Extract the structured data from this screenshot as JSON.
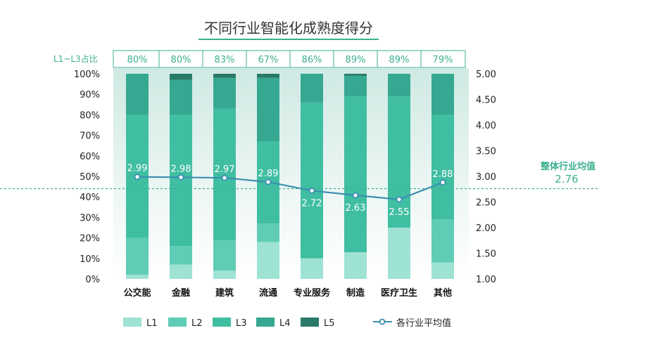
{
  "chart_data": {
    "type": "bar",
    "title": "不同行业智能化成熟度得分",
    "categories": [
      "公交能",
      "金融",
      "建筑",
      "流通",
      "专业服务",
      "制造",
      "医疗卫生",
      "其他"
    ],
    "series": [
      {
        "name": "L1",
        "values": [
          2,
          7,
          4,
          18,
          10,
          13,
          25,
          8
        ],
        "color": "#9ee2d3"
      },
      {
        "name": "L2",
        "values": [
          18,
          9,
          15,
          9,
          0,
          0,
          0,
          21
        ],
        "color": "#5fcdb6"
      },
      {
        "name": "L3",
        "values": [
          60,
          64,
          64,
          40,
          76,
          76,
          64,
          51
        ],
        "color": "#40bea2"
      },
      {
        "name": "L4",
        "values": [
          20,
          17,
          15,
          31,
          14,
          10,
          11,
          20
        ],
        "color": "#36a891"
      },
      {
        "name": "L5",
        "values": [
          0,
          3,
          2,
          2,
          0,
          1,
          0,
          0
        ],
        "color": "#2a7a69"
      }
    ],
    "line_series": {
      "name": "各行业平均值",
      "values": [
        2.99,
        2.98,
        2.97,
        2.89,
        2.72,
        2.63,
        2.55,
        2.88
      ],
      "color": "#3a8fb0"
    },
    "labels": [
      "2.99",
      "2.98",
      "2.97",
      "2.89",
      "2.72",
      "2.63",
      "2.55",
      "2.88"
    ],
    "l1_l3_header": "L1~L3占比",
    "l1_l3_values": [
      "80%",
      "80%",
      "83%",
      "67%",
      "86%",
      "89%",
      "89%",
      "79%"
    ],
    "left_axis": {
      "ylim": [
        0,
        100
      ],
      "ticks": [
        "0%",
        "10%",
        "20%",
        "30%",
        "40%",
        "50%",
        "60%",
        "70%",
        "80%",
        "90%",
        "100%"
      ]
    },
    "right_axis": {
      "ylim": [
        1.0,
        5.0
      ],
      "ticks": [
        "1.00",
        "1.50",
        "2.00",
        "2.50",
        "3.00",
        "3.50",
        "4.00",
        "4.50",
        "5.00"
      ]
    },
    "average": {
      "label": "整体行业均值",
      "value": 2.76,
      "value_text": "2.76",
      "color": "#3aaf8f"
    },
    "legend_position": "bottom"
  }
}
